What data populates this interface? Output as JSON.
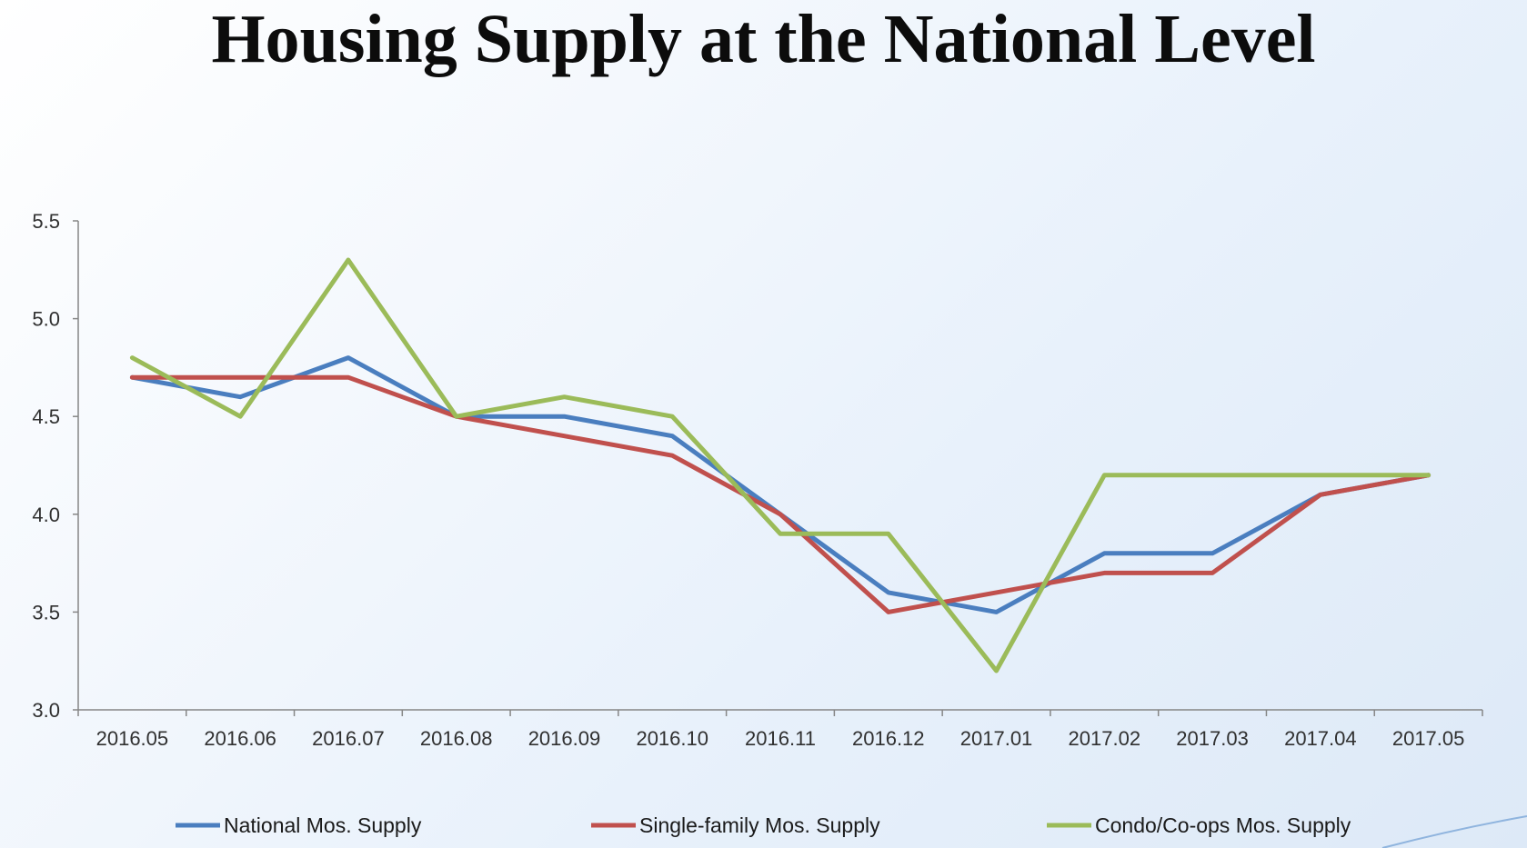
{
  "slide": {
    "title": "Housing Supply at the National Level"
  },
  "chart_data": {
    "type": "line",
    "title": "",
    "xlabel": "",
    "ylabel": "",
    "categories": [
      "2016.05",
      "2016.06",
      "2016.07",
      "2016.08",
      "2016.09",
      "2016.10",
      "2016.11",
      "2016.12",
      "2017.01",
      "2017.02",
      "2017.03",
      "2017.04",
      "2017.05"
    ],
    "ylim": [
      3.0,
      5.5
    ],
    "yticks": [
      "3.0",
      "3.5",
      "4.0",
      "4.5",
      "5.0",
      "5.5"
    ],
    "ytick_values": [
      3.0,
      3.5,
      4.0,
      4.5,
      5.0,
      5.5
    ],
    "grid": false,
    "legend_position": "bottom",
    "series": [
      {
        "name": "National Mos. Supply",
        "color": "#4a7ebf",
        "values": [
          4.7,
          4.6,
          4.8,
          4.5,
          4.5,
          4.4,
          4.0,
          3.6,
          3.5,
          3.8,
          3.8,
          4.1,
          4.2
        ]
      },
      {
        "name": "Single-family Mos. Supply",
        "color": "#c0504d",
        "values": [
          4.7,
          4.7,
          4.7,
          4.5,
          4.4,
          4.3,
          4.0,
          3.5,
          3.6,
          3.7,
          3.7,
          4.1,
          4.2
        ]
      },
      {
        "name": "Condo/Co-ops Mos. Supply",
        "color": "#9bbb59",
        "values": [
          4.8,
          4.5,
          5.3,
          4.5,
          4.6,
          4.5,
          3.9,
          3.9,
          3.2,
          4.2,
          4.2,
          4.2,
          4.2
        ]
      }
    ]
  },
  "theme": {
    "axis_color": "#868686",
    "swoosh_color": "#8fb4de"
  }
}
